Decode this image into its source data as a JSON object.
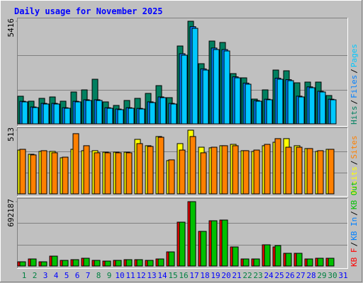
{
  "title": "Daily usage for November 2025",
  "legend_separator": "/",
  "chart_data": [
    {
      "type": "bar",
      "categories": [
        "1",
        "2",
        "3",
        "4",
        "5",
        "6",
        "7",
        "8",
        "9",
        "10",
        "11",
        "12",
        "13",
        "14",
        "15",
        "16",
        "17",
        "18",
        "19",
        "20",
        "21",
        "22",
        "23",
        "24",
        "25",
        "26",
        "27",
        "28",
        "29",
        "30",
        "31"
      ],
      "ylim": [
        0,
        5416
      ],
      "yticks": [
        5416
      ],
      "series": [
        {
          "name": "Hits",
          "color": "#008060",
          "values": [
            1457,
            1195,
            1345,
            1419,
            1195,
            1681,
            1793,
            2353,
            1158,
            971,
            1233,
            1345,
            1606,
            2017,
            1382,
            4109,
            5416,
            3175,
            4370,
            4295,
            2652,
            2428,
            1307,
            1793,
            2839,
            2801,
            2166,
            2204,
            2204,
            1494,
            null
          ]
        },
        {
          "name": "Files",
          "color": "#0080ff",
          "values": [
            1190,
            890,
            1080,
            1080,
            850,
            1190,
            1270,
            1270,
            850,
            780,
            850,
            815,
            1160,
            1420,
            1080,
            3700,
            5130,
            2900,
            4000,
            3920,
            2480,
            2150,
            1230,
            1300,
            2410,
            2330,
            1460,
            1950,
            1720,
            1300,
            null
          ]
        },
        {
          "name": "Pages",
          "color": "#00c8ff",
          "values": [
            1158,
            859,
            1046,
            1046,
            822,
            1158,
            1233,
            1233,
            822,
            747,
            822,
            784,
            1121,
            1382,
            1046,
            3623,
            5042,
            2839,
            3922,
            3847,
            2428,
            2092,
            1195,
            1270,
            2353,
            2278,
            1419,
            1905,
            1681,
            1270,
            null
          ]
        }
      ]
    },
    {
      "type": "bar",
      "categories": [
        "1",
        "2",
        "3",
        "4",
        "5",
        "6",
        "7",
        "8",
        "9",
        "10",
        "11",
        "12",
        "13",
        "14",
        "15",
        "16",
        "17",
        "18",
        "19",
        "20",
        "21",
        "22",
        "23",
        "24",
        "25",
        "26",
        "27",
        "28",
        "29",
        "30",
        "31"
      ],
      "ylim": [
        0,
        513
      ],
      "yticks": [
        513
      ],
      "series": [
        {
          "name": "Visits",
          "color": "#ffff00",
          "values": [
            353,
            319,
            342,
            342,
            291,
            359,
            348,
            348,
            336,
            336,
            336,
            439,
            388,
            462,
            268,
            405,
            513,
            376,
            371,
            388,
            399,
            348,
            342,
            388,
            416,
            445,
            388,
            365,
            342,
            359,
            null
          ]
        },
        {
          "name": "Sites",
          "color": "#ff8000",
          "values": [
            359,
            314,
            348,
            331,
            296,
            485,
            388,
            331,
            331,
            331,
            331,
            405,
            382,
            456,
            274,
            353,
            462,
            331,
            376,
            388,
            388,
            348,
            353,
            399,
            445,
            376,
            376,
            365,
            348,
            359,
            null
          ]
        }
      ]
    },
    {
      "type": "bar",
      "categories": [
        "1",
        "2",
        "3",
        "4",
        "5",
        "6",
        "7",
        "8",
        "9",
        "10",
        "11",
        "12",
        "13",
        "14",
        "15",
        "16",
        "17",
        "18",
        "19",
        "20",
        "21",
        "22",
        "23",
        "24",
        "25",
        "26",
        "27",
        "28",
        "29",
        "30",
        "31"
      ],
      "category_colors": [
        "#008040",
        "#008040",
        "#0000ff",
        "#0000ff",
        "#0000ff",
        "#0000ff",
        "#0000ff",
        "#008040",
        "#008040",
        "#0000ff",
        "#0000ff",
        "#0000ff",
        "#0000ff",
        "#0000ff",
        "#008040",
        "#008040",
        "#0000ff",
        "#0000ff",
        "#0000ff",
        "#0000ff",
        "#0000ff",
        "#008040",
        "#008040",
        "#0000ff",
        "#0000ff",
        "#0000ff",
        "#0000ff",
        "#0000ff",
        "#008040",
        "#008040",
        "#0000ff"
      ],
      "ylim": [
        0,
        692187
      ],
      "yticks": [
        692187
      ],
      "series": [
        {
          "name": "KB F",
          "color": "#ff0000",
          "values": [
            45642,
            76070,
            45642,
            106498,
            60856,
            68463,
            83677,
            60856,
            53249,
            60856,
            68463,
            68463,
            60856,
            76070,
            152140,
            471634,
            692187,
            372743,
            486848,
            494455,
            205389,
            76070,
            76070,
            228210,
            205389,
            136926,
            136926,
            76070,
            83677,
            83677,
            null
          ]
        },
        {
          "name": "KB In",
          "color": "#0080ff",
          "values": [
            null,
            null,
            null,
            null,
            null,
            null,
            null,
            null,
            null,
            null,
            null,
            null,
            null,
            null,
            null,
            null,
            null,
            null,
            null,
            null,
            null,
            null,
            null,
            null,
            null,
            null,
            null,
            null,
            null,
            null,
            null
          ]
        },
        {
          "name": "KB Out",
          "color": "#00c000",
          "values": [
            45642,
            76070,
            45642,
            106498,
            60856,
            68463,
            83677,
            60856,
            53249,
            60856,
            68463,
            68463,
            60856,
            76070,
            152140,
            471634,
            692187,
            372743,
            486848,
            494455,
            205389,
            76070,
            76070,
            228210,
            220603,
            136926,
            136926,
            76070,
            83677,
            83677,
            null
          ]
        }
      ]
    }
  ]
}
